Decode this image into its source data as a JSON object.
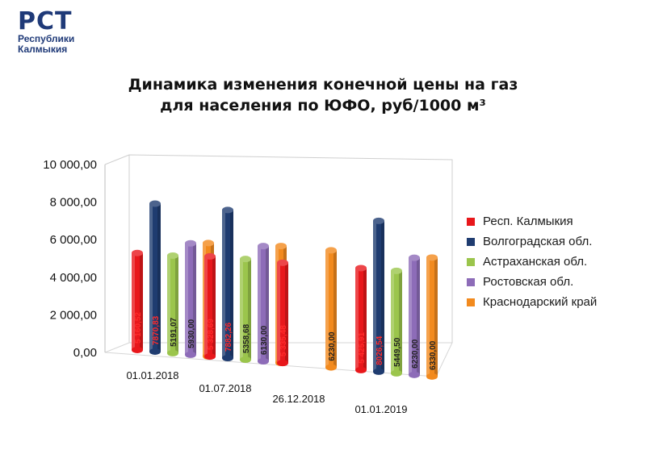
{
  "logo": {
    "main": "РСТ",
    "line1": "Республики",
    "line2": "Калмыкия"
  },
  "colors": {
    "Резп": "#e8171b"
  },
  "chart_data": {
    "type": "bar",
    "title": [
      "Динамика изменения конечной цены на газ",
      "для населения по ЮФО, руб/1000 м³"
    ],
    "categories": [
      "01.01.2018",
      "01.07.2018",
      "26.12.2018",
      "01.01.2019"
    ],
    "yticks": [
      "0,00",
      "2 000,00",
      "4 000,00",
      "6 000,00",
      "8 000,00",
      "10 000,00"
    ],
    "ylim": [
      0,
      10000
    ],
    "grid": false,
    "legend_position": "right",
    "series": [
      {
        "name": "Респ. Калмыкия",
        "color": "#e8171b",
        "values": [
          5160.52,
          5328.69,
          5335.48,
          5425.91
        ],
        "labels": [
          "5 160,52",
          "5 328,69",
          "5 335,48",
          "5 425,91"
        ]
      },
      {
        "name": "Волгоградская обл.",
        "color": "#1f3c70",
        "values": [
          7870.83,
          7882.26,
          null,
          8026.54
        ],
        "labels": [
          "7870,83",
          "7882,26",
          "",
          "8026,54"
        ]
      },
      {
        "name": "Астраханская обл.",
        "color": "#9bc54c",
        "values": [
          5191.07,
          5358.68,
          null,
          5449.5
        ],
        "labels": [
          "5191,07",
          "5358,68",
          "",
          "5449,50"
        ]
      },
      {
        "name": "Ростовская обл.",
        "color": "#8d6cb8",
        "values": [
          5930.0,
          6130.0,
          null,
          6230.0
        ],
        "labels": [
          "5930,00",
          "6130,00",
          "",
          "6230,00"
        ]
      },
      {
        "name": "Краснодарский край",
        "color": "#f28a1e",
        "values": [
          6030.0,
          6220.0,
          6230.0,
          6330.0
        ],
        "labels": [
          "6030,00",
          "6220,00",
          "6230,00",
          "6330,00"
        ]
      }
    ]
  }
}
